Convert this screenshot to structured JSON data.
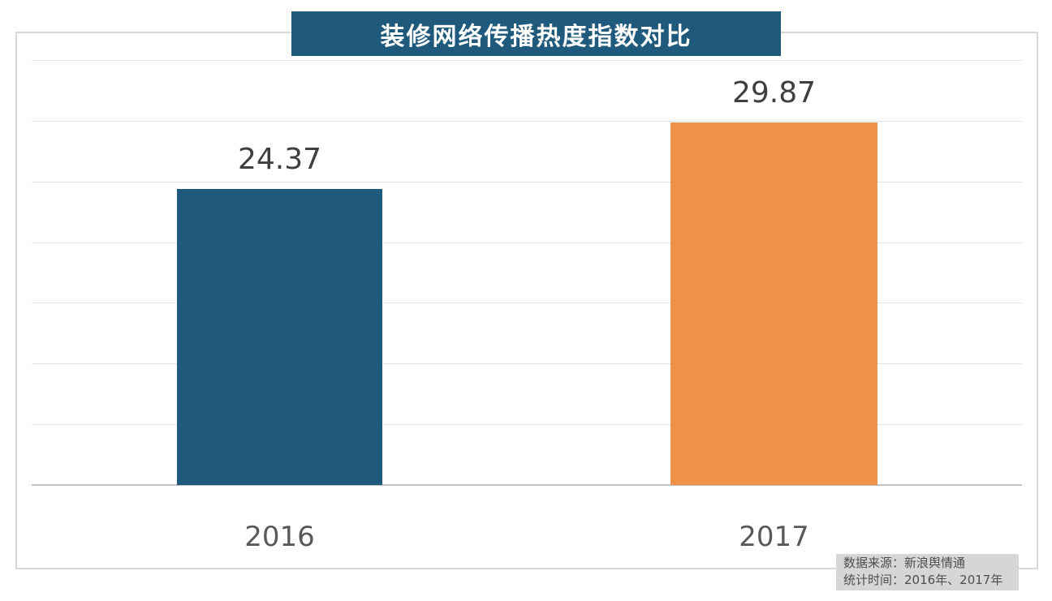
{
  "title": "装修网络传播热度指数对比",
  "chart_data": {
    "type": "bar",
    "title": "装修网络传播热度指数对比",
    "categories": [
      "2016",
      "2017"
    ],
    "values": [
      24.37,
      29.87
    ],
    "value_labels": [
      "24.37",
      "29.87"
    ],
    "bar_colors": [
      "#1f597b",
      "#f09148"
    ],
    "xlabel": "",
    "ylabel": "",
    "ylim": [
      0,
      35
    ],
    "gridline_step": 5,
    "grid": "horizontal, light gray, no y tick labels",
    "legend": "none"
  },
  "source_note": {
    "line1": "数据来源：新浪舆情通",
    "line2": "统计时间：2016年、2017年"
  },
  "colors": {
    "banner_bg": "#1f597b",
    "bar_2016": "#1f597b",
    "bar_2017": "#f09148",
    "gridline": "#e3e3e3",
    "axis_line": "#c2c2c2",
    "frame_border": "#d8d8d8",
    "value_label_text": "#3f3f3f",
    "x_label_text": "#595959",
    "note_bg": "#d6d6d6",
    "note_text": "#4d4d4d",
    "title_text": "#ffffff"
  }
}
